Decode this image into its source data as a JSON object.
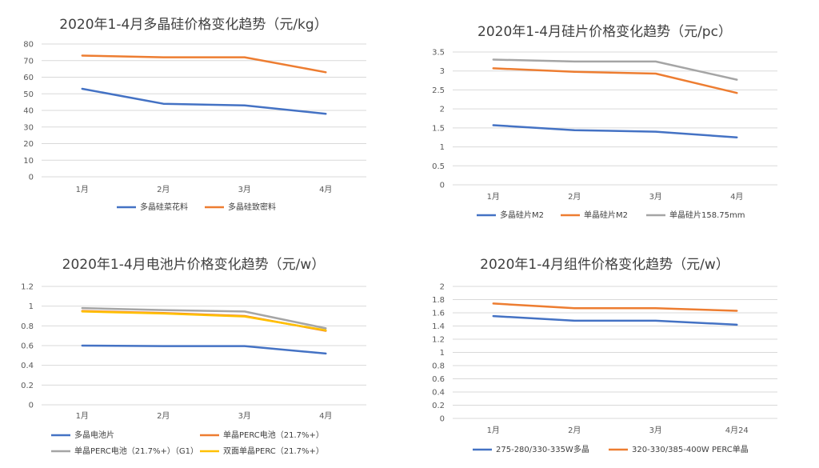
{
  "chart_data": [
    {
      "type": "line",
      "title": "2020年1-4月多晶硅价格变化趋势（元/kg）",
      "categories": [
        "1月",
        "2月",
        "3月",
        "4月"
      ],
      "y_ticks": [
        "0",
        "10",
        "20",
        "30",
        "40",
        "50",
        "60",
        "70",
        "80"
      ],
      "ylim": [
        0,
        80
      ],
      "grid": true,
      "legend": "bottom",
      "series": [
        {
          "name": "多晶硅菜花料",
          "color": "#4472c4",
          "values": [
            53,
            44,
            43,
            38
          ]
        },
        {
          "name": "多晶硅致密料",
          "color": "#ed7d31",
          "values": [
            73,
            72,
            72,
            63
          ]
        }
      ]
    },
    {
      "type": "line",
      "title": "2020年1-4月硅片价格变化趋势（元/pc）",
      "categories": [
        "1月",
        "2月",
        "3月",
        "4月"
      ],
      "y_ticks": [
        "0",
        "0.5",
        "1",
        "1.5",
        "2",
        "2.5",
        "3",
        "3.5"
      ],
      "ylim": [
        0,
        3.5
      ],
      "grid": true,
      "legend": "bottom",
      "series": [
        {
          "name": "多晶硅片M2",
          "color": "#4472c4",
          "values": [
            1.57,
            1.44,
            1.4,
            1.25
          ]
        },
        {
          "name": "单晶硅片M2",
          "color": "#ed7d31",
          "values": [
            3.07,
            2.98,
            2.93,
            2.42
          ]
        },
        {
          "name": "单晶硅片158.75mm",
          "color": "#a5a5a5",
          "values": [
            3.3,
            3.25,
            3.25,
            2.77
          ]
        }
      ]
    },
    {
      "type": "line",
      "title": "2020年1-4月电池片价格变化趋势（元/w）",
      "categories": [
        "1月",
        "2月",
        "3月",
        "4月"
      ],
      "y_ticks": [
        "0",
        "0.2",
        "0.4",
        "0.6",
        "0.8",
        "1",
        "1.2"
      ],
      "ylim": [
        0,
        1.2
      ],
      "grid": true,
      "legend": "bottom",
      "series": [
        {
          "name": "多晶电池片",
          "color": "#4472c4",
          "values": [
            0.6,
            0.595,
            0.595,
            0.52
          ]
        },
        {
          "name": "单晶PERC电池（21.7%+）",
          "color": "#ed7d31",
          "values": [
            0.95,
            0.93,
            0.9,
            0.75
          ]
        },
        {
          "name": "单晶PERC电池（21.7%+）（G1）",
          "color": "#a5a5a5",
          "values": [
            0.98,
            0.96,
            0.945,
            0.775
          ]
        },
        {
          "name": "双面单晶PERC（21.7%+）",
          "color": "#ffc000",
          "values": [
            0.945,
            0.925,
            0.895,
            0.755
          ]
        }
      ]
    },
    {
      "type": "line",
      "title": "2020年1-4月组件价格变化趋势（元/w）",
      "categories": [
        "1月",
        "2月",
        "3月",
        "4月24"
      ],
      "y_ticks": [
        "0",
        "0.2",
        "0.4",
        "0.6",
        "0.8",
        "1",
        "1.2",
        "1.4",
        "1.6",
        "1.8",
        "2"
      ],
      "ylim": [
        0,
        2
      ],
      "grid": true,
      "legend": "bottom",
      "series": [
        {
          "name": "275-280/330-335W多晶",
          "color": "#4472c4",
          "values": [
            1.55,
            1.48,
            1.48,
            1.42
          ]
        },
        {
          "name": "320-330/385-400W PERC单晶",
          "color": "#ed7d31",
          "values": [
            1.74,
            1.67,
            1.67,
            1.63
          ]
        }
      ]
    }
  ]
}
